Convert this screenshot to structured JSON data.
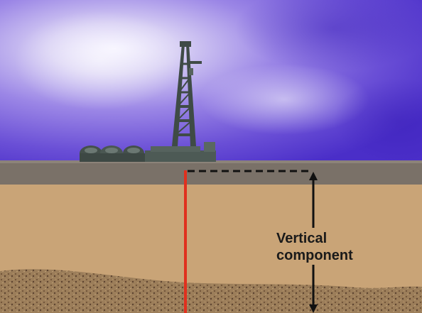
{
  "annotation": {
    "line1": "Vertical",
    "line2": "component"
  },
  "colors": {
    "sky_light": "#d9d2f2",
    "sky_dark": "#4a2ec8",
    "surface": "#7a7168",
    "soil": "#c9a477",
    "gravel": "#8b6d4d",
    "well": "#e0301e",
    "rig": "#4d5a55",
    "arrow": "#111111"
  },
  "icons": [
    "drilling-rig-icon",
    "storage-tank-icon"
  ]
}
